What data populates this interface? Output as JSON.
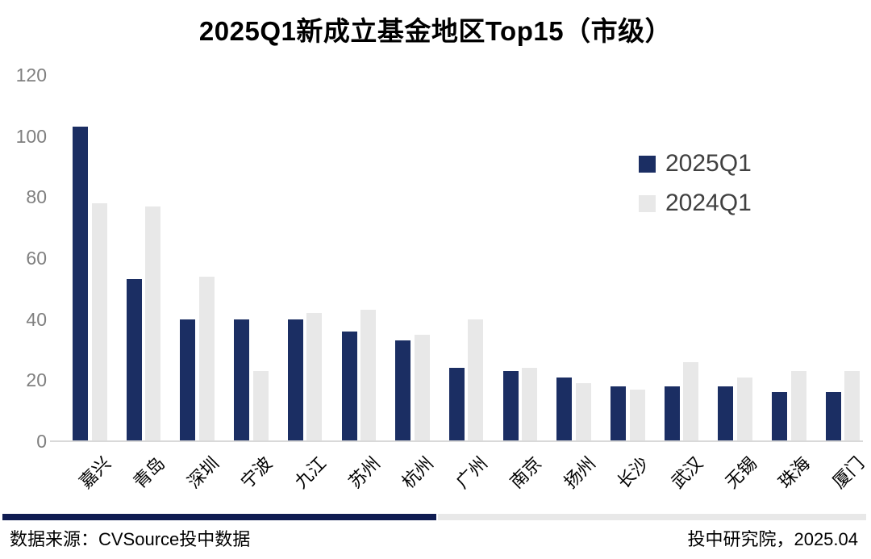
{
  "title": "2025Q1新成立基金地区Top15（市级）",
  "chart_data": {
    "type": "bar",
    "title": "2025Q1新成立基金地区Top15（市级）",
    "categories": [
      "嘉兴",
      "青岛",
      "深圳",
      "宁波",
      "九江",
      "苏州",
      "杭州",
      "广州",
      "南京",
      "扬州",
      "长沙",
      "武汉",
      "无锡",
      "珠海",
      "厦门"
    ],
    "series": [
      {
        "name": "2025Q1",
        "color": "#1b2e63",
        "values": [
          103,
          53,
          40,
          40,
          40,
          36,
          33,
          24,
          23,
          21,
          18,
          18,
          18,
          16,
          16
        ]
      },
      {
        "name": "2024Q1",
        "color": "#e8e8e8",
        "values": [
          78,
          77,
          54,
          23,
          42,
          43,
          35,
          40,
          24,
          19,
          17,
          26,
          21,
          23,
          23
        ]
      }
    ],
    "xlabel": "",
    "ylabel": "",
    "ylim": [
      0,
      120
    ],
    "yticks": [
      0,
      20,
      40,
      60,
      80,
      100,
      120
    ],
    "grid": false,
    "legend_position": "upper right"
  },
  "colors": {
    "bar_2025": "#1b2e63",
    "bar_2024": "#e8e8e8",
    "axis_line": "#d9d9d9",
    "ytick_text": "#7f7f7f",
    "legend_text": "#404040",
    "footer_bar_navy": "#0f1c52",
    "footer_bar_gray": "#e8e8e8"
  },
  "footer": {
    "source": "数据来源：CVSource投中数据",
    "credit": "投中研究院，2025.04"
  }
}
